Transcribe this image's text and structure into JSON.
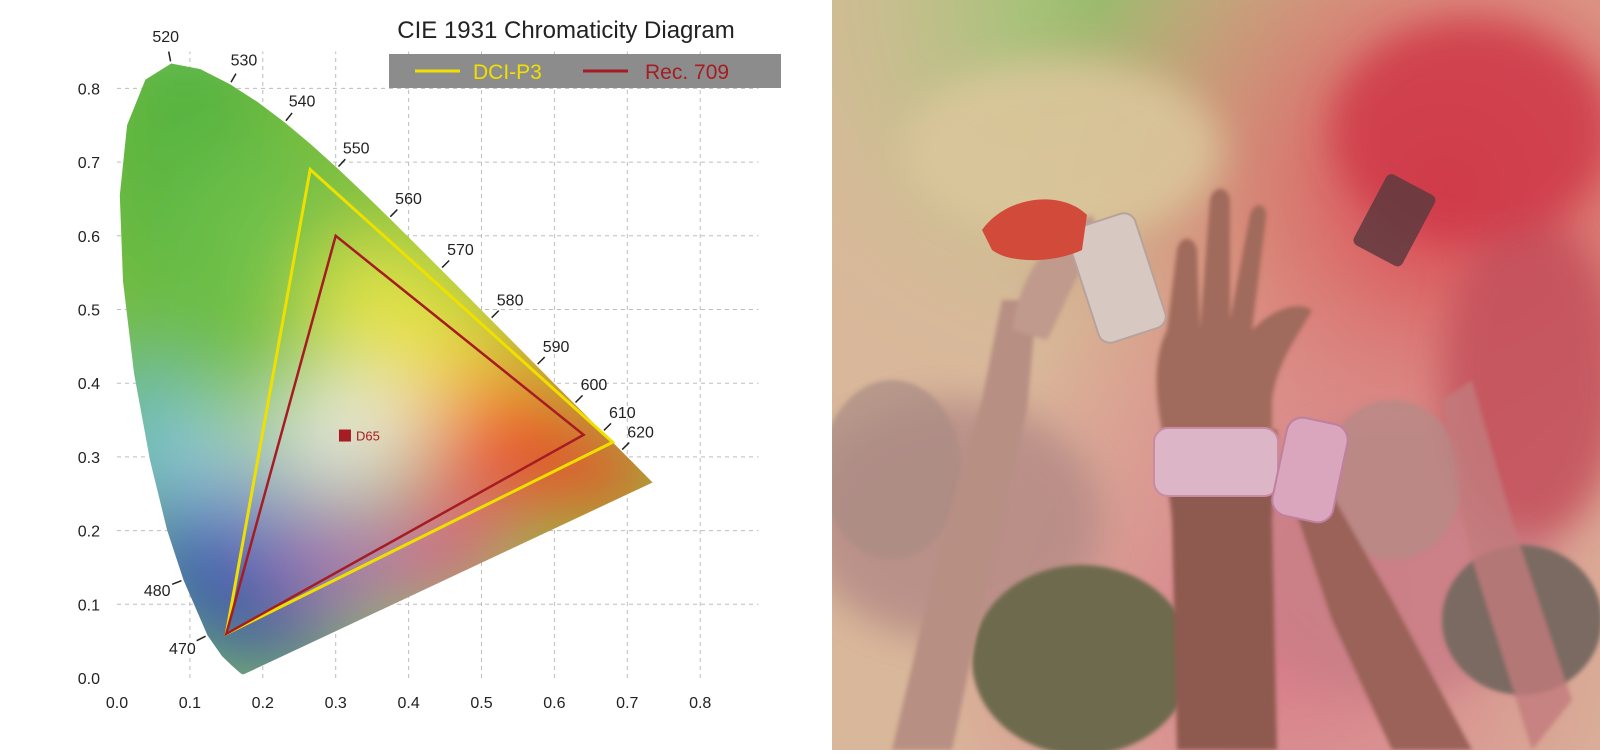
{
  "diagram": {
    "title": "CIE 1931 Chromaticity Diagram",
    "xlim": [
      0.0,
      0.8
    ],
    "ylim": [
      0.0,
      0.8
    ],
    "x_ticks": [
      "0.0",
      "0.1",
      "0.2",
      "0.3",
      "0.4",
      "0.5",
      "0.6",
      "0.7",
      "0.8"
    ],
    "y_ticks": [
      "0.0",
      "0.1",
      "0.2",
      "0.3",
      "0.4",
      "0.5",
      "0.6",
      "0.7",
      "0.8"
    ],
    "grid": true,
    "legend_placement": "top-right",
    "legend_bg_color": "#8c8c8c",
    "legend": [
      {
        "label": "DCI-P3",
        "color": "#f0e000"
      },
      {
        "label": "Rec. 709",
        "color": "#a61c23"
      }
    ],
    "gamuts": [
      {
        "name": "DCI-P3",
        "color": "#f0e000",
        "points": [
          [
            0.68,
            0.32
          ],
          [
            0.265,
            0.69
          ],
          [
            0.15,
            0.06
          ]
        ]
      },
      {
        "name": "Rec. 709",
        "color": "#a61c23",
        "points": [
          [
            0.64,
            0.33
          ],
          [
            0.3,
            0.6
          ],
          [
            0.15,
            0.06
          ]
        ]
      }
    ],
    "white_point": {
      "label": "D65",
      "x": 0.3127,
      "y": 0.329,
      "color": "#a61c23"
    },
    "wavelength_labels": [
      {
        "nm": "470",
        "x": 0.124,
        "y": 0.058
      },
      {
        "nm": "480",
        "x": 0.091,
        "y": 0.133
      },
      {
        "nm": "520",
        "x": 0.074,
        "y": 0.834
      },
      {
        "nm": "530",
        "x": 0.155,
        "y": 0.806
      },
      {
        "nm": "540",
        "x": 0.23,
        "y": 0.754
      },
      {
        "nm": "550",
        "x": 0.302,
        "y": 0.692
      },
      {
        "nm": "560",
        "x": 0.373,
        "y": 0.624
      },
      {
        "nm": "570",
        "x": 0.444,
        "y": 0.555
      },
      {
        "nm": "580",
        "x": 0.512,
        "y": 0.487
      },
      {
        "nm": "590",
        "x": 0.575,
        "y": 0.424
      },
      {
        "nm": "600",
        "x": 0.627,
        "y": 0.372
      },
      {
        "nm": "610",
        "x": 0.666,
        "y": 0.334
      },
      {
        "nm": "620",
        "x": 0.691,
        "y": 0.308
      }
    ],
    "locus": [
      [
        0.1741,
        0.005
      ],
      [
        0.1714,
        0.0051
      ],
      [
        0.1689,
        0.0069
      ],
      [
        0.1644,
        0.0109
      ],
      [
        0.1566,
        0.0177
      ],
      [
        0.144,
        0.0297
      ],
      [
        0.1241,
        0.0578
      ],
      [
        0.0913,
        0.1327
      ],
      [
        0.0687,
        0.2007
      ],
      [
        0.0454,
        0.295
      ],
      [
        0.0235,
        0.4127
      ],
      [
        0.0082,
        0.5384
      ],
      [
        0.0039,
        0.6548
      ],
      [
        0.0139,
        0.7502
      ],
      [
        0.0389,
        0.812
      ],
      [
        0.0743,
        0.8338
      ],
      [
        0.1142,
        0.8262
      ],
      [
        0.1547,
        0.8059
      ],
      [
        0.1929,
        0.7816
      ],
      [
        0.2296,
        0.7543
      ],
      [
        0.2658,
        0.7243
      ],
      [
        0.3016,
        0.6923
      ],
      [
        0.3373,
        0.6589
      ],
      [
        0.3731,
        0.6245
      ],
      [
        0.4087,
        0.5896
      ],
      [
        0.4441,
        0.5547
      ],
      [
        0.4788,
        0.5202
      ],
      [
        0.5125,
        0.4866
      ],
      [
        0.5448,
        0.4544
      ],
      [
        0.5752,
        0.4242
      ],
      [
        0.6029,
        0.3965
      ],
      [
        0.627,
        0.3725
      ],
      [
        0.6482,
        0.3514
      ],
      [
        0.6658,
        0.334
      ],
      [
        0.6801,
        0.3197
      ],
      [
        0.6915,
        0.3083
      ],
      [
        0.7006,
        0.2993
      ],
      [
        0.7079,
        0.292
      ],
      [
        0.714,
        0.2859
      ],
      [
        0.719,
        0.2809
      ],
      [
        0.723,
        0.277
      ],
      [
        0.726,
        0.274
      ],
      [
        0.7347,
        0.2653
      ]
    ]
  },
  "photo": {
    "subject": "crowd-raising-hands-in-colored-powder"
  }
}
